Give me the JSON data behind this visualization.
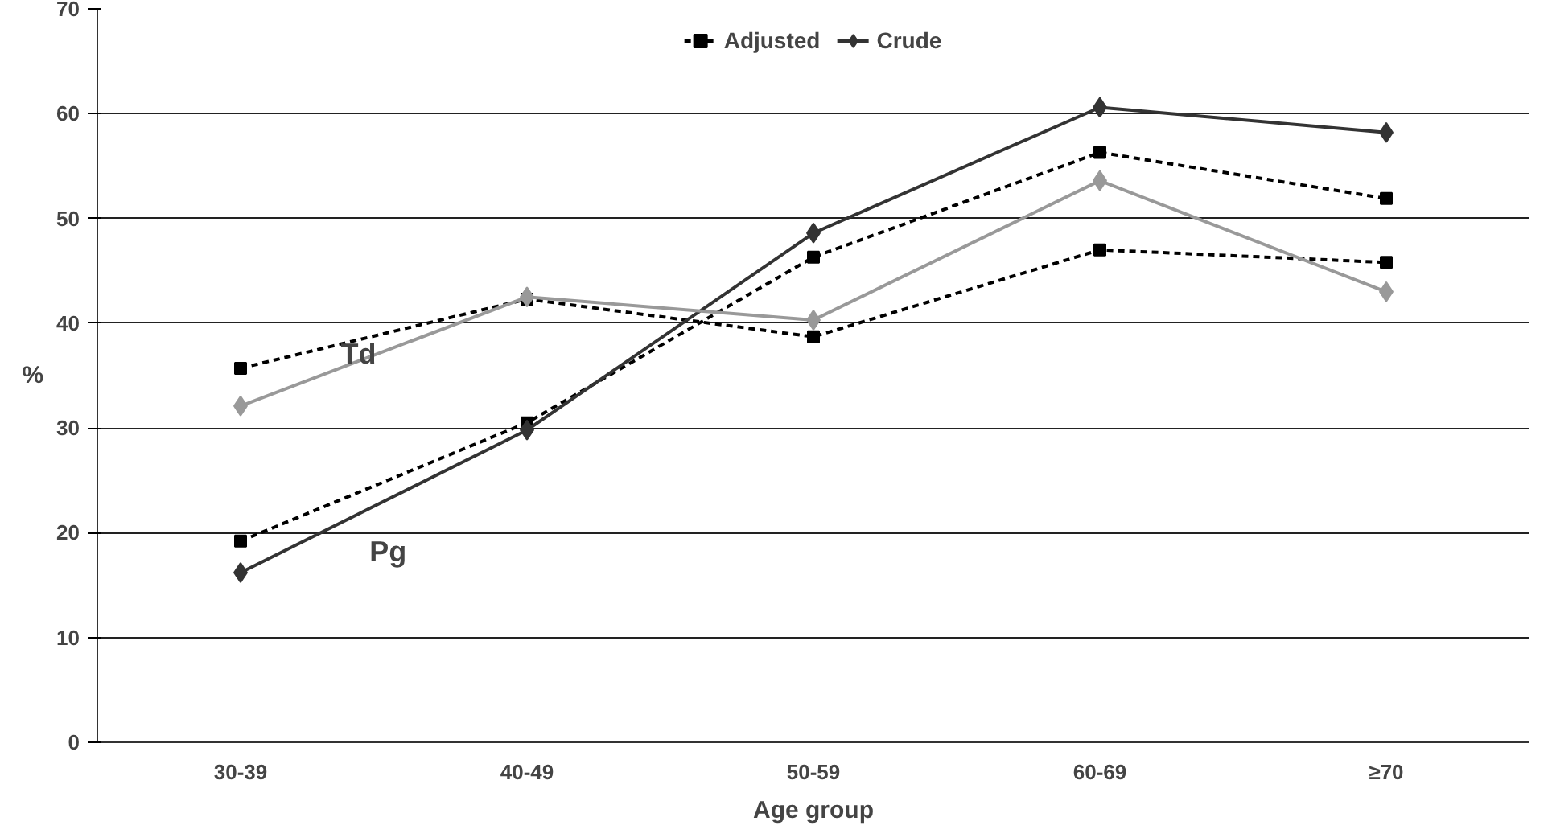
{
  "chart_data": {
    "type": "line",
    "xlabel": "Age group",
    "ylabel": "%",
    "categories": [
      "30-39",
      "40-49",
      "50-59",
      "60-69",
      "≥70"
    ],
    "series": [
      {
        "name": "Crude",
        "color": "#333333",
        "marker": "diamond",
        "line_style": "solid",
        "values": [
          16.2,
          29.8,
          48.6,
          60.6,
          58.2
        ]
      },
      {
        "name": "Adjusted",
        "color": "#000000",
        "marker": "square",
        "line_style": "dashed",
        "values": [
          19.2,
          30.5,
          46.3,
          56.3,
          51.9
        ]
      },
      {
        "color": "#999999",
        "marker": "diamond",
        "line_style": "solid",
        "values": [
          32.1,
          42.5,
          40.3,
          53.6,
          43.0
        ]
      },
      {
        "color": "#000000",
        "marker": "square",
        "line_style": "dashed",
        "values": [
          35.7,
          42.3,
          38.7,
          47.0,
          45.8
        ]
      }
    ],
    "ylim": [
      0,
      70
    ],
    "yticks": [
      0,
      10,
      20,
      30,
      40,
      50,
      60,
      70
    ],
    "grid": "y",
    "legend": "top",
    "annotations": [
      "Td",
      "Pg"
    ]
  }
}
